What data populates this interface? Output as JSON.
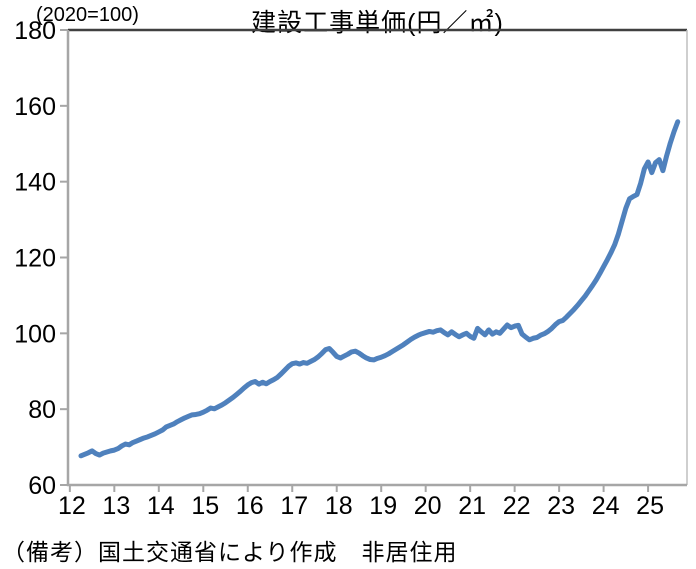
{
  "title": "建設工事単価(円／㎡)",
  "index_note": "(2020=100)",
  "source_note": "（備考）国土交通省により作成　非居住用",
  "chart_data": {
    "type": "line",
    "title": "建設工事単価(円／㎡)",
    "subtitle": "(2020=100)",
    "xlabel": "",
    "ylabel": "",
    "ylim": [
      60,
      180
    ],
    "y_tick_step": 20,
    "y_tick_labels": [
      "60",
      "80",
      "100",
      "120",
      "140",
      "160",
      "180"
    ],
    "x_tick_labels": [
      "12",
      "13",
      "14",
      "15",
      "16",
      "17",
      "18",
      "19",
      "20",
      "21",
      "22",
      "23",
      "24",
      "25"
    ],
    "grid": false,
    "legend_position": "none",
    "line_color": "#4F81BD",
    "axis_color": "#A6A6A6",
    "top_border_color": "#404040",
    "right_border_color": "#BFBFBF",
    "series": [
      {
        "name": "非居住用",
        "frequency": "monthly",
        "start_month": "2012-04",
        "values": [
          67.7,
          68.1,
          68.5,
          69.0,
          68.3,
          67.9,
          68.4,
          68.7,
          69.0,
          69.2,
          69.6,
          70.3,
          70.8,
          70.6,
          71.2,
          71.6,
          72.0,
          72.4,
          72.7,
          73.1,
          73.5,
          74.0,
          74.5,
          75.3,
          75.7,
          76.1,
          76.7,
          77.2,
          77.7,
          78.1,
          78.5,
          78.6,
          78.8,
          79.2,
          79.7,
          80.3,
          80.1,
          80.6,
          81.1,
          81.7,
          82.4,
          83.1,
          83.9,
          84.7,
          85.6,
          86.4,
          87.0,
          87.3,
          86.6,
          87.1,
          86.7,
          87.3,
          87.8,
          88.4,
          89.3,
          90.3,
          91.3,
          92.0,
          92.2,
          91.9,
          92.3,
          92.1,
          92.6,
          93.1,
          93.8,
          94.7,
          95.7,
          96.0,
          95.0,
          93.9,
          93.5,
          94.0,
          94.5,
          95.1,
          95.3,
          94.8,
          94.1,
          93.5,
          93.1,
          93.0,
          93.4,
          93.7,
          94.1,
          94.6,
          95.2,
          95.8,
          96.4,
          97.0,
          97.7,
          98.4,
          99.0,
          99.5,
          99.9,
          100.2,
          100.5,
          100.3,
          100.7,
          100.9,
          100.2,
          99.6,
          100.4,
          99.7,
          99.1,
          99.6,
          100.0,
          99.2,
          98.7,
          101.3,
          100.4,
          99.6,
          100.9,
          99.8,
          100.4,
          100.0,
          101.1,
          102.2,
          101.5,
          101.9,
          102.1,
          99.8,
          99.0,
          98.3,
          98.7,
          98.9,
          99.5,
          99.9,
          100.5,
          101.3,
          102.3,
          103.1,
          103.4,
          104.3,
          105.3,
          106.3,
          107.4,
          108.6,
          109.8,
          111.2,
          112.6,
          114.1,
          115.8,
          117.6,
          119.4,
          121.3,
          123.4,
          126.2,
          129.6,
          133.0,
          135.5,
          136.1,
          136.6,
          139.6,
          143.4,
          145.2,
          142.4,
          145.0,
          145.8,
          142.9,
          146.8,
          150.2,
          153.2,
          155.8
        ]
      }
    ],
    "source": "（備考）国土交通省により作成　非居住用"
  }
}
